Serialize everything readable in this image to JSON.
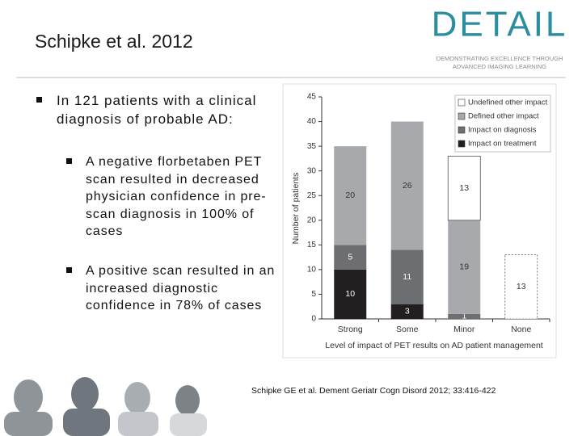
{
  "header": {
    "title": "Schipke et al. 2012",
    "logo": "DETAIL",
    "tagline_1": "DEMONSTRATING EXCELLENCE THROUGH",
    "tagline_2": "ADVANCED IMAGING LEARNING"
  },
  "bullets": [
    {
      "text": "In 121 patients with a clinical diagnosis of probable AD:",
      "sub": [
        "A negative florbetaben PET scan resulted in decreased physician confidence in pre-scan diagnosis in 100% of cases",
        "A positive scan resulted in an increased diagnostic confidence in 78% of cases"
      ]
    }
  ],
  "citation": "Schipke GE et al. Dement Geriatr Cogn Disord 2012; 33:416-422",
  "chart_data": {
    "type": "stacked_bar",
    "y_label": "Number of patients",
    "x_label": "Level of impact of PET results on AD patient management",
    "categories": [
      "Strong",
      "Some",
      "Minor",
      "None"
    ],
    "series": [
      {
        "name": "Impact on treatment",
        "color": "#231f20",
        "values": [
          10,
          3,
          0,
          0
        ]
      },
      {
        "name": "Impact on diagnosis",
        "color": "#6d6e71",
        "values": [
          5,
          11,
          1,
          0
        ]
      },
      {
        "name": "Defined other impact",
        "color": "#a7a9ac",
        "values": [
          20,
          26,
          19,
          0
        ]
      },
      {
        "name": "Undefined other impact",
        "color": "#ffffff",
        "values": [
          0,
          0,
          13,
          13
        ]
      }
    ],
    "ylim": [
      0,
      45
    ],
    "yticks": [
      0,
      5,
      10,
      15,
      20,
      25,
      30,
      35,
      40,
      45
    ],
    "legend": "top-right"
  }
}
